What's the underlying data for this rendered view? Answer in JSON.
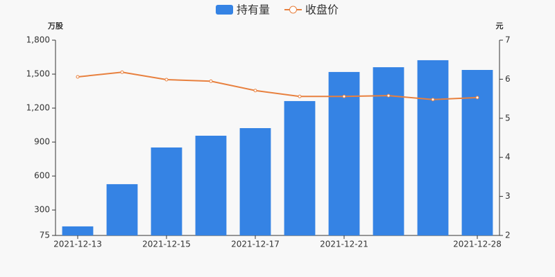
{
  "chart_data": {
    "type": "bar-line",
    "y_label": "万股",
    "y2_label": "元",
    "categories": [
      "2021-12-13",
      null,
      "2021-12-15",
      null,
      "2021-12-17",
      null,
      "2021-12-21",
      null,
      null,
      "2021-12-28"
    ],
    "series": [
      {
        "name": "持有量",
        "type": "bar",
        "color": "#3583e4",
        "values": [
          155,
          528,
          852,
          956,
          1023,
          1262,
          1519,
          1561,
          1623,
          1537
        ]
      },
      {
        "name": "收盘价",
        "type": "line",
        "axis": "y2",
        "color": "#e8803e",
        "values": [
          6.06,
          6.18,
          5.99,
          5.95,
          5.71,
          5.56,
          5.56,
          5.58,
          5.48,
          5.53
        ]
      }
    ],
    "ylim": [
      75,
      1800
    ],
    "yticks": [
      75,
      300,
      600,
      900,
      {
        "value": 1200,
        "label": "1,200"
      },
      {
        "value": 1500,
        "label": "1,500"
      },
      {
        "value": 1800,
        "label": "1,800"
      }
    ],
    "y2lim": [
      2,
      7
    ],
    "y2ticks": [
      2,
      3,
      4,
      5,
      6,
      7
    ]
  }
}
